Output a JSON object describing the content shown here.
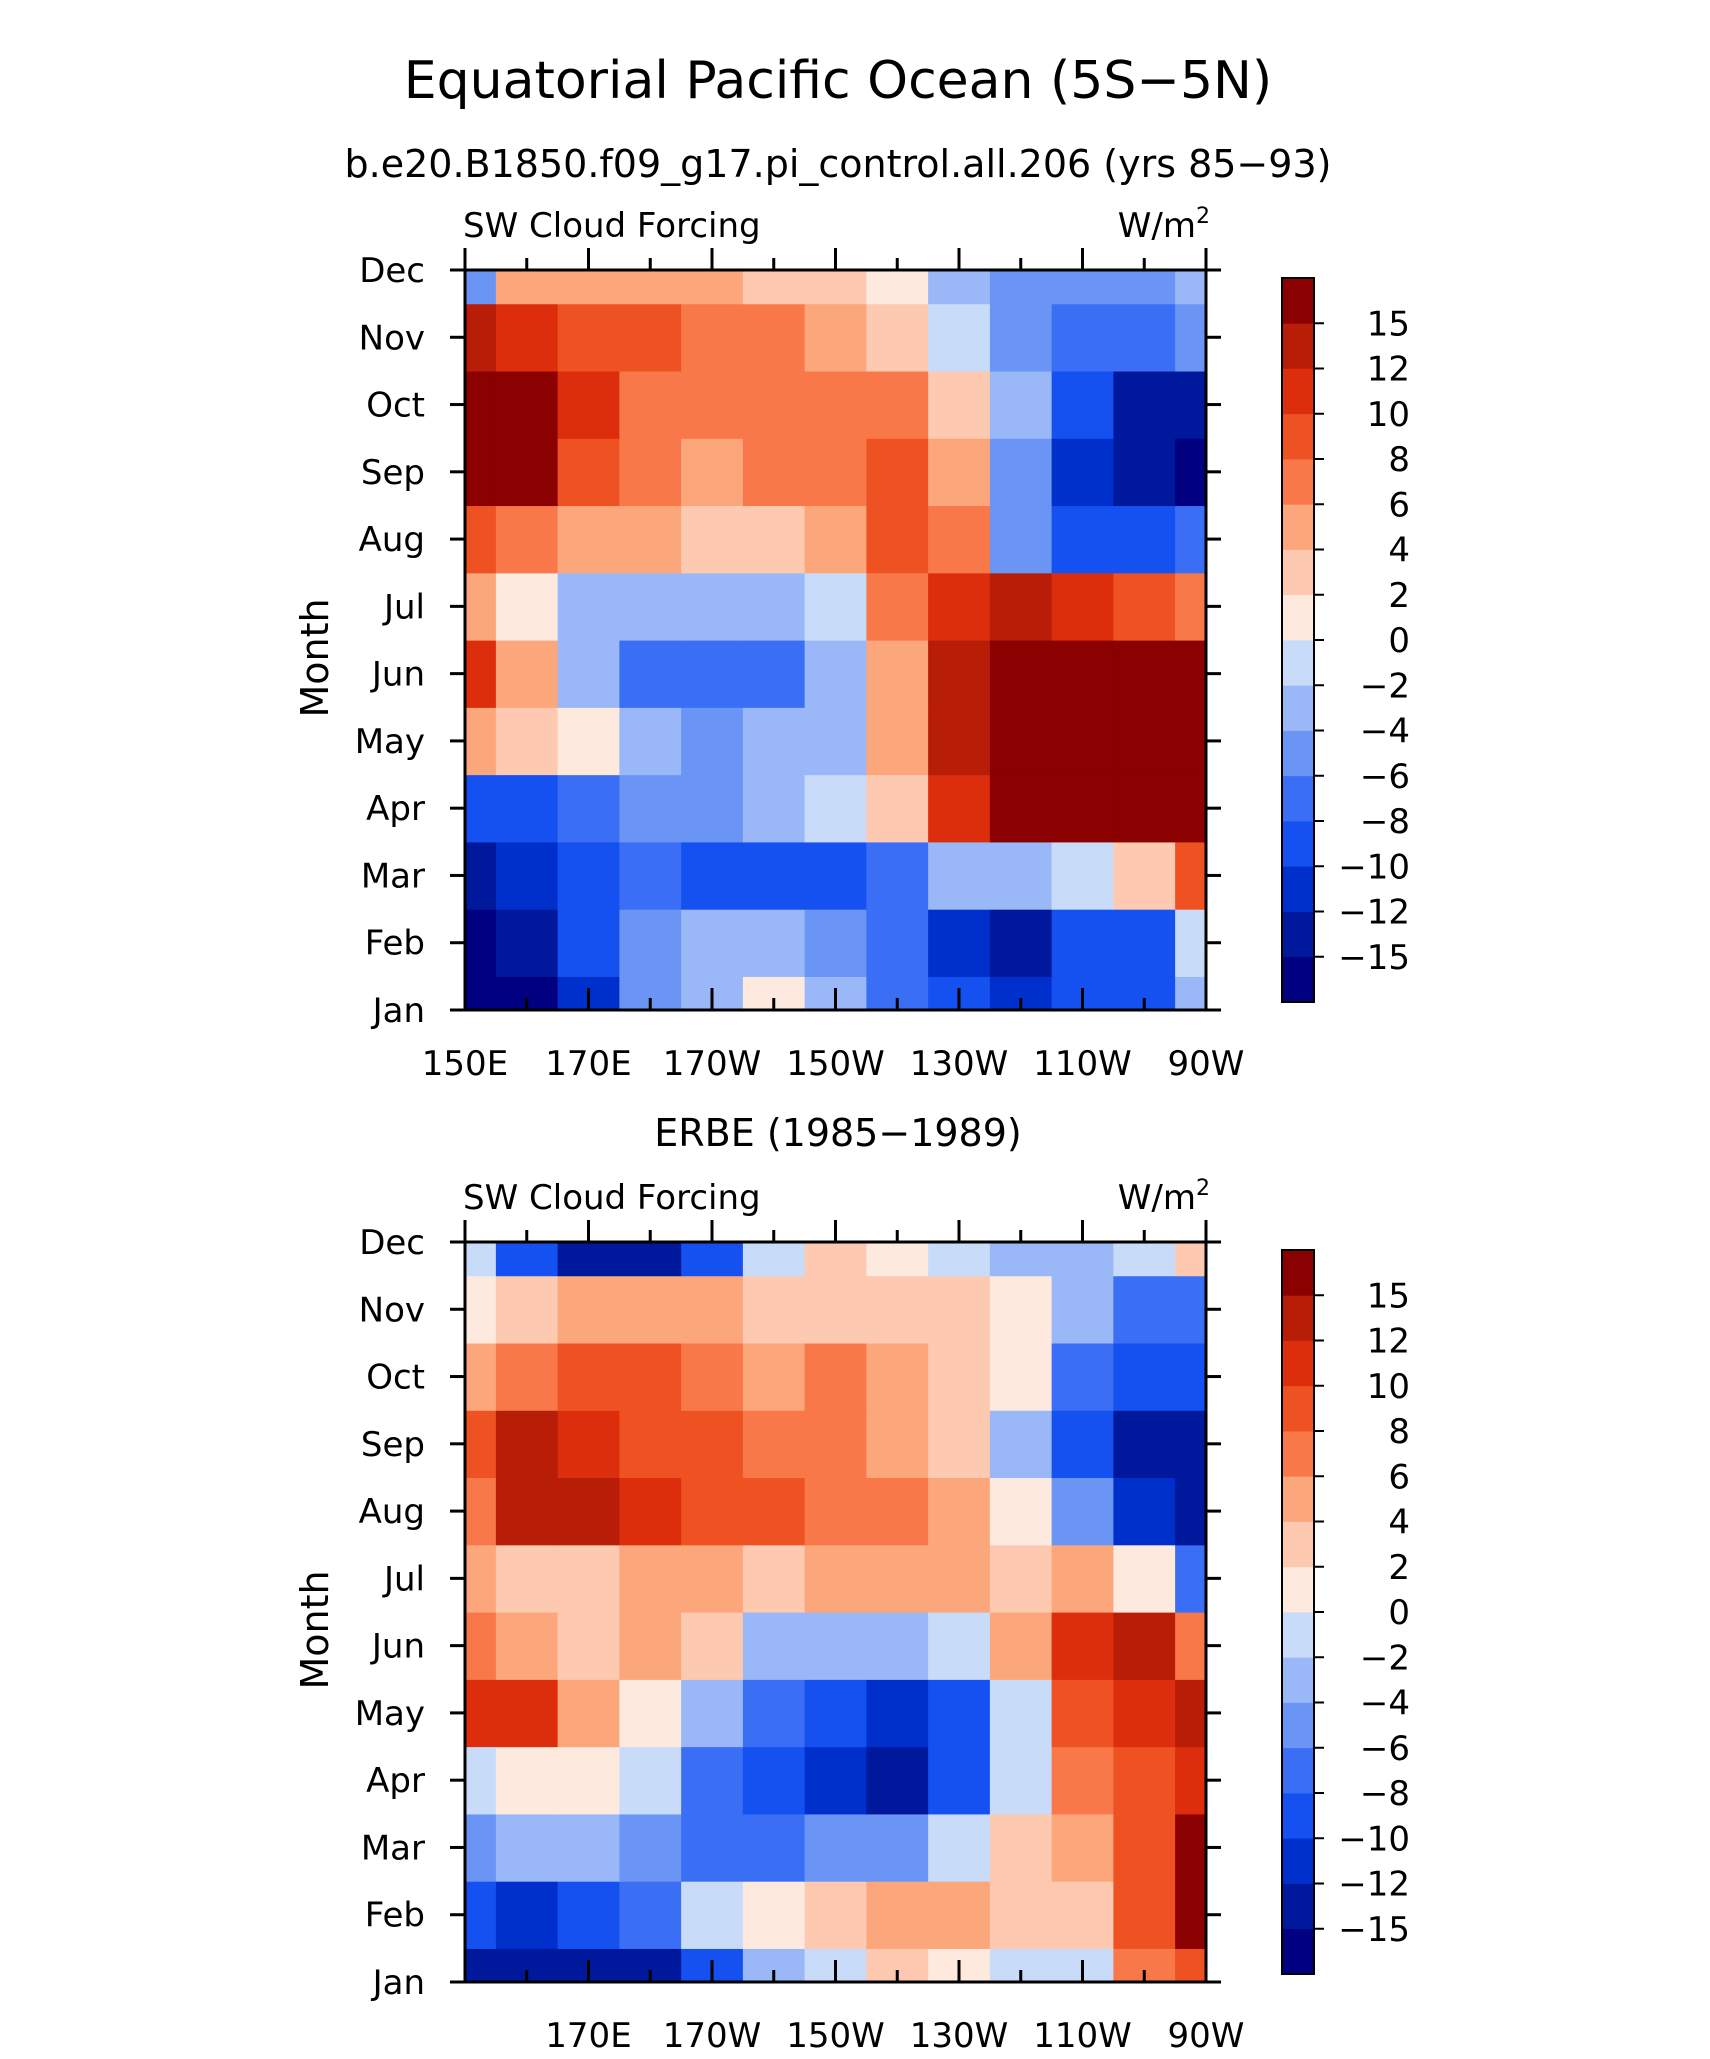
{
  "title": "Equatorial Pacific Ocean (5S−5N)",
  "chart_data": [
    {
      "type": "heatmap",
      "subtitle": "b.e20.B1850.f09_g17.pi_control.all.206 (yrs 85−93)",
      "left_label": "SW Cloud Forcing",
      "right_label_base": "W/m",
      "right_label_sup": "2",
      "ylabel": "Month",
      "xlabel": "",
      "xlim": [
        150,
        270
      ],
      "x_ticks": [
        {
          "value": 150,
          "label": "150E"
        },
        {
          "value": 170,
          "label": "170E"
        },
        {
          "value": 190,
          "label": "170W"
        },
        {
          "value": 210,
          "label": "150W"
        },
        {
          "value": 230,
          "label": "130W"
        },
        {
          "value": 250,
          "label": "110W"
        },
        {
          "value": 270,
          "label": "90W"
        }
      ],
      "x": [
        150,
        160,
        170,
        180,
        190,
        200,
        210,
        220,
        230,
        240,
        250,
        260,
        270
      ],
      "y": [
        "Jan",
        "Feb",
        "Mar",
        "Apr",
        "May",
        "Jun",
        "Jul",
        "Aug",
        "Sep",
        "Oct",
        "Nov",
        "Dec"
      ],
      "z": [
        [
          -17,
          -16,
          -11,
          -5,
          -3,
          1,
          -4,
          -8,
          -10,
          -12,
          -10,
          -9,
          -3
        ],
        [
          -17,
          -14,
          -10,
          -6,
          -4,
          -3,
          -5,
          -8,
          -11,
          -14,
          -10,
          -9,
          -2
        ],
        [
          -14,
          -12,
          -9,
          -8,
          -10,
          -10,
          -9,
          -7,
          -3,
          -3,
          -2,
          3,
          9
        ],
        [
          -10,
          -9,
          -7,
          -6,
          -5,
          -4,
          -2,
          2,
          10,
          16,
          17,
          17,
          15
        ],
        [
          4,
          2,
          1,
          -4,
          -5,
          -4,
          -3,
          4,
          13,
          17,
          17,
          17,
          16
        ],
        [
          10,
          5,
          -3,
          -7,
          -7,
          -7,
          -3,
          5,
          12,
          17,
          17,
          17,
          16
        ],
        [
          5,
          0,
          -3,
          -4,
          -4,
          -3,
          -1,
          6,
          11,
          13,
          10,
          8,
          7
        ],
        [
          8,
          6,
          5,
          4,
          3,
          2,
          5,
          8,
          6,
          -5,
          -10,
          -10,
          -8
        ],
        [
          17,
          16,
          8,
          6,
          5,
          6,
          7,
          9,
          4,
          -6,
          -11,
          -14,
          -16
        ],
        [
          17,
          16,
          10,
          7,
          6,
          7,
          6,
          7,
          2,
          -4,
          -10,
          -13,
          -14
        ],
        [
          13,
          11,
          9,
          8,
          7,
          6,
          5,
          3,
          -2,
          -6,
          -7,
          -7,
          -6
        ],
        [
          -6,
          4,
          5,
          5,
          5,
          3,
          2,
          0,
          -3,
          -5,
          -6,
          -6,
          -4
        ]
      ],
      "color_levels": [
        -15,
        -12,
        -10,
        -8,
        -6,
        -4,
        -2,
        0,
        2,
        4,
        6,
        8,
        10,
        12,
        15
      ]
    },
    {
      "type": "heatmap",
      "subtitle": "ERBE (1985−1989)",
      "left_label": "SW Cloud Forcing",
      "right_label_base": "W/m",
      "right_label_sup": "2",
      "ylabel": "Month",
      "xlabel": "",
      "xlim": [
        150,
        270
      ],
      "x_ticks": [
        {
          "value": 170,
          "label": "170E"
        },
        {
          "value": 190,
          "label": "170W"
        },
        {
          "value": 210,
          "label": "150W"
        },
        {
          "value": 230,
          "label": "130W"
        },
        {
          "value": 250,
          "label": "110W"
        },
        {
          "value": 270,
          "label": "90W"
        }
      ],
      "x": [
        150,
        160,
        170,
        180,
        190,
        200,
        210,
        220,
        230,
        240,
        250,
        260,
        270
      ],
      "y": [
        "Jan",
        "Feb",
        "Mar",
        "Apr",
        "May",
        "Jun",
        "Jul",
        "Aug",
        "Sep",
        "Oct",
        "Nov",
        "Dec"
      ],
      "z": [
        [
          -13,
          -15,
          -14,
          -14,
          -10,
          -4,
          -2,
          2,
          0,
          -2,
          -2,
          6,
          8
        ],
        [
          -9,
          -11,
          -9,
          -8,
          -2,
          0,
          2,
          4,
          4,
          2,
          2,
          8,
          15
        ],
        [
          -5,
          -3,
          -3,
          -5,
          -7,
          -7,
          -5,
          -5,
          -2,
          2,
          5,
          8,
          16
        ],
        [
          -2,
          0,
          1,
          -2,
          -7,
          -10,
          -12,
          -13,
          -10,
          -1,
          6,
          9,
          11
        ],
        [
          11,
          10,
          4,
          0,
          -4,
          -8,
          -10,
          -12,
          -10,
          -2,
          8,
          11,
          12
        ],
        [
          6,
          5,
          3,
          4,
          2,
          -3,
          -4,
          -3,
          -1,
          5,
          11,
          12,
          7
        ],
        [
          4,
          3,
          3,
          4,
          5,
          3,
          4,
          5,
          4,
          3,
          4,
          0,
          -8
        ],
        [
          6,
          12,
          12,
          10,
          8,
          8,
          7,
          6,
          4,
          0,
          -6,
          -12,
          -14
        ],
        [
          8,
          13,
          10,
          8,
          9,
          7,
          6,
          5,
          3,
          -3,
          -10,
          -14,
          -15
        ],
        [
          4,
          6,
          8,
          8,
          7,
          5,
          6,
          4,
          2,
          0,
          -7,
          -10,
          -10
        ],
        [
          0,
          2,
          4,
          5,
          4,
          3,
          3,
          2,
          3,
          0,
          -4,
          -7,
          -8
        ],
        [
          -2,
          -10,
          -13,
          -13,
          -10,
          -1,
          2,
          1,
          -1,
          -3,
          -3,
          -2,
          2
        ]
      ],
      "color_levels": [
        -15,
        -12,
        -10,
        -8,
        -6,
        -4,
        -2,
        0,
        2,
        4,
        6,
        8,
        10,
        12,
        15
      ]
    }
  ],
  "colorbar": {
    "labels": [
      "15",
      "12",
      "10",
      "8",
      "6",
      "4",
      "2",
      "0",
      "−2",
      "−4",
      "−6",
      "−8",
      "−10",
      "−12",
      "−15"
    ],
    "colors": [
      "#000080",
      "#00189c",
      "#0030cc",
      "#1550f0",
      "#3a6ef5",
      "#6a95f5",
      "#9ab8f7",
      "#c8dcfa",
      "#fde9de",
      "#fdc9b0",
      "#fca67c",
      "#f8784a",
      "#ef5222",
      "#dc2d0c",
      "#b81d08",
      "#8b0000"
    ]
  }
}
